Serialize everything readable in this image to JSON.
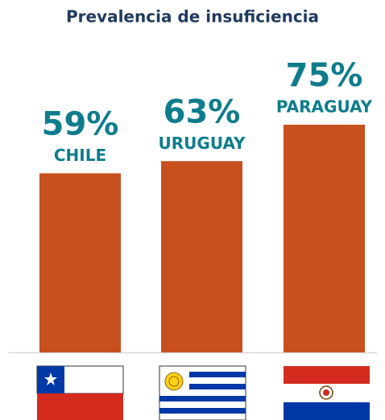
{
  "chart_data": {
    "type": "bar",
    "title": "Prevalencia de insuficiencia",
    "categories": [
      "CHILE",
      "URUGUAY",
      "PARAGUAY"
    ],
    "values": [
      59,
      63,
      75
    ],
    "value_labels": [
      "59%",
      "63%",
      "75%"
    ],
    "color": "#c8501e"
  }
}
